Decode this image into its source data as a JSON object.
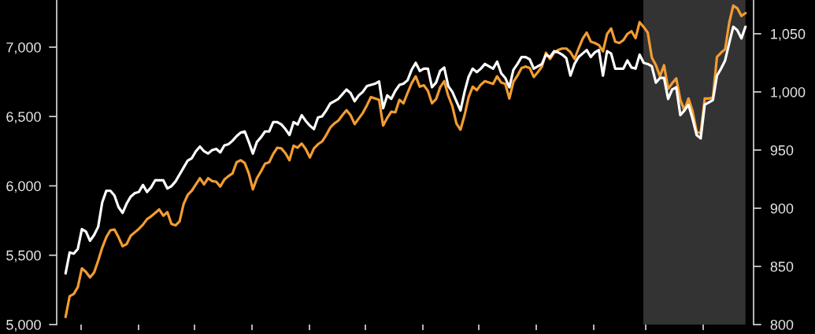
{
  "chart_data": {
    "type": "line",
    "categories": [
      null,
      null,
      null,
      null,
      null,
      null,
      null,
      null,
      null,
      null,
      null,
      null,
      null,
      null,
      null,
      null,
      null,
      null,
      null,
      null,
      null,
      null,
      null,
      null,
      null,
      null,
      null,
      null,
      null,
      null,
      null,
      null,
      null,
      null,
      null,
      null,
      null,
      null,
      null,
      null,
      null,
      null,
      null,
      null,
      null,
      null,
      null,
      null,
      null,
      null,
      null,
      null,
      null,
      null,
      null,
      null,
      null,
      null,
      null,
      null,
      null,
      null,
      null,
      null,
      null,
      null,
      null,
      null,
      null,
      null,
      null,
      null,
      null,
      null,
      null,
      null,
      null,
      null,
      null,
      null,
      null,
      null,
      null,
      null,
      null,
      null,
      null,
      null,
      null,
      null,
      null,
      null,
      null,
      null,
      null,
      null,
      null,
      null,
      null,
      null,
      null,
      null,
      null,
      null,
      null,
      null,
      null,
      null,
      null,
      null,
      null,
      null,
      null,
      null,
      null,
      null,
      null,
      null,
      null,
      null,
      null,
      null,
      null,
      null,
      null,
      null,
      null,
      null,
      null,
      null,
      null,
      null,
      null,
      null,
      null,
      null,
      null,
      null,
      null,
      null,
      null,
      null,
      null,
      null,
      null,
      null,
      null,
      null,
      null,
      null,
      null,
      null,
      null,
      null,
      null,
      null,
      null,
      null,
      null,
      null,
      null,
      null,
      null,
      null,
      null,
      null,
      null,
      null
    ],
    "ylim": [
      5000,
      7340
    ],
    "yticks": [
      {
        "value": 5000,
        "label": "5,000"
      },
      {
        "value": 5500,
        "label": "5,500"
      },
      {
        "value": 6000,
        "label": "6,000"
      },
      {
        "value": 6500,
        "label": "6,500"
      },
      {
        "value": 7000,
        "label": "7,000"
      }
    ],
    "y2lim": [
      800,
      1079
    ],
    "y2ticks": [
      800,
      850,
      900,
      950,
      {
        "value": 1000,
        "label": "1,000"
      },
      {
        "value": 1050,
        "label": "1,050"
      }
    ],
    "tick_labels": "y",
    "series": [
      {
        "color": "#f39c32",
        "axis": "y",
        "values": [
          5055,
          5205,
          5220,
          5270,
          5405,
          5380,
          5340,
          5375,
          5460,
          5555,
          5630,
          5680,
          5685,
          5630,
          5565,
          5580,
          5640,
          5665,
          5690,
          5720,
          5760,
          5780,
          5805,
          5830,
          5785,
          5810,
          5725,
          5715,
          5745,
          5870,
          5935,
          5965,
          6010,
          6055,
          6010,
          6055,
          6035,
          6030,
          5995,
          6045,
          6070,
          6090,
          6170,
          6185,
          6165,
          6090,
          5975,
          6055,
          6105,
          6160,
          6170,
          6230,
          6275,
          6270,
          6235,
          6185,
          6290,
          6275,
          6305,
          6265,
          6205,
          6270,
          6300,
          6320,
          6365,
          6420,
          6450,
          6470,
          6510,
          6545,
          6510,
          6445,
          6485,
          6525,
          6580,
          6640,
          6630,
          6620,
          6435,
          6490,
          6535,
          6530,
          6620,
          6595,
          6670,
          6740,
          6790,
          6715,
          6725,
          6685,
          6595,
          6625,
          6710,
          6755,
          6650,
          6575,
          6450,
          6405,
          6510,
          6640,
          6715,
          6690,
          6730,
          6755,
          6745,
          6735,
          6790,
          6745,
          6735,
          6630,
          6750,
          6795,
          6850,
          6860,
          6850,
          6785,
          6820,
          6860,
          6960,
          6915,
          6960,
          6980,
          6990,
          6990,
          6965,
          6915,
          6990,
          7060,
          7105,
          7040,
          7030,
          7015,
          6970,
          7095,
          7135,
          7040,
          7030,
          7050,
          7095,
          7115,
          7065,
          7180,
          7145,
          7105,
          6925,
          6870,
          6790,
          6870,
          6700,
          6740,
          6775,
          6620,
          6545,
          6630,
          6540,
          6390,
          6380,
          6630,
          6630,
          6635,
          6930,
          6960,
          6985,
          7175,
          7300,
          7280,
          7225,
          7245
        ]
      },
      {
        "color": "#ffffff",
        "axis": "y2",
        "values": [
          844,
          862,
          861,
          865,
          882,
          880,
          872,
          877,
          884,
          905,
          915,
          915,
          911,
          901,
          896,
          904,
          910,
          913,
          914,
          920,
          914,
          918,
          924,
          924,
          924,
          917,
          919,
          923,
          929,
          935,
          941,
          943,
          949,
          953,
          949,
          947,
          950,
          951,
          948,
          954,
          955,
          958,
          962,
          965,
          966,
          957,
          947,
          957,
          961,
          966,
          966,
          974,
          974,
          972,
          968,
          963,
          974,
          972,
          980,
          975,
          971,
          968,
          978,
          979,
          984,
          990,
          992,
          994,
          998,
          1002,
          999,
          992,
          997,
          1000,
          1005,
          1006,
          1007,
          1009,
          986,
          997,
          994,
          1001,
          1006,
          1007,
          1010,
          1019,
          1025,
          1018,
          1020,
          1020,
          1004,
          1008,
          1018,
          1021,
          1005,
          1000,
          992,
          984,
          1000,
          1013,
          1020,
          1017,
          1020,
          1024,
          1022,
          1020,
          1026,
          1016,
          1012,
          1004,
          1019,
          1024,
          1030,
          1030,
          1028,
          1020,
          1022,
          1024,
          1032,
          1030,
          1035,
          1034,
          1032,
          1029,
          1014,
          1024,
          1030,
          1033,
          1036,
          1030,
          1034,
          1036,
          1014,
          1035,
          1033,
          1020,
          1020,
          1020,
          1027,
          1021,
          1020,
          1032,
          1025,
          1024,
          1022,
          1008,
          1012,
          1012,
          994,
          1002,
          1004,
          980,
          984,
          989,
          977,
          963,
          960,
          989,
          991,
          993,
          1014,
          1020,
          1027,
          1042,
          1056,
          1053,
          1046,
          1056
        ]
      }
    ]
  }
}
